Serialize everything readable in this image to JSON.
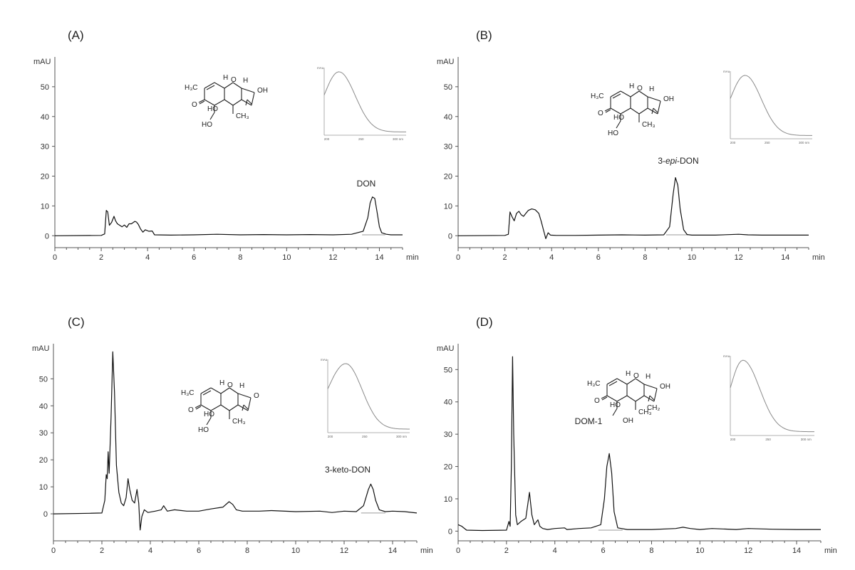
{
  "chart_data": [
    {
      "type": "line",
      "panel": "(A)",
      "xlabel": "min",
      "ylabel": "mAU",
      "xlim": [
        0,
        15
      ],
      "ylim": [
        -4,
        60
      ],
      "x_ticks": [
        0,
        2,
        4,
        6,
        8,
        10,
        12,
        14
      ],
      "y_ticks": [
        0,
        10,
        20,
        30,
        40,
        50
      ],
      "line_color": "#111111",
      "baseline_color": "#9a9a9a",
      "peaks": [
        {
          "label": "DON",
          "rt": 13.7,
          "height": 13
        }
      ],
      "series": [
        {
          "x": [
            0,
            2.0,
            2.15,
            2.22,
            2.28,
            2.35,
            2.45,
            2.55,
            2.62,
            2.7,
            2.9,
            3.0,
            3.1,
            3.2,
            3.3,
            3.45,
            3.52,
            3.6,
            3.7,
            3.8,
            3.9,
            4.05,
            4.2,
            4.3,
            5,
            6,
            7,
            8,
            9,
            10,
            11,
            12,
            12.8,
            13.3,
            13.5,
            13.6,
            13.7,
            13.8,
            13.9,
            14.0,
            14.1,
            14.3,
            14.5,
            15
          ],
          "y": [
            0,
            0.1,
            0.6,
            8.5,
            8.0,
            3.5,
            4.5,
            6.5,
            5.0,
            4.0,
            3.0,
            3.6,
            2.8,
            4.0,
            4.0,
            4.8,
            4.6,
            3.8,
            2.2,
            1.2,
            2.0,
            1.5,
            1.6,
            0.3,
            0.2,
            0.3,
            0.5,
            0.3,
            0.4,
            0.3,
            0.4,
            0.3,
            0.5,
            1.5,
            6.0,
            11.0,
            13.0,
            12.5,
            8.0,
            3.0,
            1.0,
            0.5,
            0.3,
            0.3
          ]
        }
      ],
      "inset": {
        "xlim": [
          200,
          300
        ],
        "x_ticks": [
          "200",
          "250",
          "300 nm"
        ],
        "ylabel": "mAu",
        "uv_max_nm": 218
      }
    },
    {
      "type": "line",
      "panel": "(B)",
      "xlabel": "min",
      "ylabel": "mAU",
      "xlim": [
        0,
        15
      ],
      "ylim": [
        -4,
        60
      ],
      "x_ticks": [
        0,
        2,
        4,
        6,
        8,
        10,
        12,
        14
      ],
      "y_ticks": [
        0,
        10,
        20,
        30,
        40,
        50
      ],
      "line_color": "#111111",
      "baseline_color": "#9a9a9a",
      "peaks": [
        {
          "label_parts": [
            "3-",
            "epi",
            "-DON"
          ],
          "rt": 9.35,
          "height": 19.5
        }
      ],
      "series": [
        {
          "x": [
            0,
            2.0,
            2.15,
            2.22,
            2.3,
            2.4,
            2.5,
            2.6,
            2.7,
            2.8,
            2.9,
            3.0,
            3.15,
            3.3,
            3.45,
            3.55,
            3.65,
            3.75,
            3.85,
            3.95,
            4.2,
            5,
            6,
            7,
            8,
            8.8,
            9.05,
            9.2,
            9.3,
            9.4,
            9.5,
            9.65,
            9.8,
            10,
            11,
            12,
            12.4,
            13,
            14,
            15
          ],
          "y": [
            0,
            0.1,
            0.5,
            8.0,
            6.5,
            5.0,
            7.5,
            8.2,
            7.0,
            6.5,
            7.5,
            8.5,
            9.0,
            8.7,
            7.5,
            5.0,
            2.0,
            -1.0,
            1.0,
            0.2,
            0.1,
            0.1,
            0.2,
            0.3,
            0.2,
            0.3,
            3.0,
            14.0,
            19.5,
            17.0,
            9.0,
            2.0,
            0.4,
            0.2,
            0.2,
            0.5,
            0.3,
            0.2,
            0.2,
            0.2
          ]
        }
      ],
      "inset": {
        "xlim": [
          200,
          300
        ],
        "x_ticks": [
          "200",
          "250",
          "300 nm"
        ],
        "ylabel": "mAu",
        "uv_max_nm": 218
      }
    },
    {
      "type": "line",
      "panel": "(C)",
      "xlabel": "min",
      "ylabel": "mAU",
      "xlim": [
        0,
        15
      ],
      "ylim": [
        -10,
        63
      ],
      "x_ticks": [
        0,
        2,
        4,
        6,
        8,
        10,
        12,
        14
      ],
      "y_ticks": [
        0,
        10,
        20,
        30,
        40,
        50
      ],
      "line_color": "#111111",
      "baseline_color": "#9a9a9a",
      "peaks": [
        {
          "label": "3-keto-DON",
          "rt": 13.15,
          "height": 11
        }
      ],
      "series": [
        {
          "x": [
            0,
            1.5,
            2.0,
            2.12,
            2.18,
            2.22,
            2.26,
            2.3,
            2.38,
            2.45,
            2.52,
            2.6,
            2.7,
            2.8,
            2.9,
            3.0,
            3.08,
            3.15,
            3.25,
            3.35,
            3.45,
            3.52,
            3.58,
            3.65,
            3.75,
            3.9,
            4.2,
            4.45,
            4.55,
            4.7,
            5.0,
            5.5,
            6.0,
            6.5,
            7.0,
            7.25,
            7.4,
            7.55,
            7.8,
            8.5,
            9.0,
            10,
            11,
            11.5,
            12,
            12.5,
            12.8,
            13.0,
            13.1,
            13.2,
            13.3,
            13.45,
            13.7,
            14,
            14.5,
            15
          ],
          "y": [
            0,
            0.2,
            0.3,
            5.0,
            14.5,
            13.0,
            23.0,
            15.0,
            36.0,
            60.0,
            45.0,
            18.0,
            8.0,
            4.0,
            3.0,
            6.0,
            13.0,
            9.0,
            5.0,
            4.0,
            9.0,
            4.0,
            -6.0,
            -1.0,
            1.5,
            0.5,
            1.0,
            1.5,
            3.0,
            1.0,
            1.5,
            1.0,
            1.0,
            1.8,
            2.5,
            4.5,
            3.5,
            1.5,
            1.0,
            1.0,
            1.2,
            0.8,
            1.0,
            0.5,
            1.0,
            0.8,
            3.0,
            9.0,
            11.0,
            9.0,
            5.0,
            1.5,
            0.8,
            1.0,
            0.8,
            0.3
          ]
        }
      ],
      "inset": {
        "xlim": [
          200,
          300
        ],
        "x_ticks": [
          "200",
          "250",
          "300 nm"
        ],
        "ylabel": "mAu",
        "uv_max_nm": 222
      }
    },
    {
      "type": "line",
      "panel": "(D)",
      "xlabel": "min",
      "ylabel": "mAU",
      "xlim": [
        0,
        15
      ],
      "ylim": [
        -3,
        58
      ],
      "x_ticks": [
        0,
        2,
        4,
        6,
        8,
        10,
        12,
        14
      ],
      "y_ticks": [
        0,
        10,
        20,
        30,
        40,
        50
      ],
      "line_color": "#111111",
      "baseline_color": "#9a9a9a",
      "peaks": [
        {
          "label": "DOM-1",
          "rt": 6.25,
          "height": 24
        }
      ],
      "series": [
        {
          "x": [
            0,
            0.15,
            0.35,
            1.0,
            2.0,
            2.1,
            2.15,
            2.2,
            2.25,
            2.3,
            2.38,
            2.45,
            2.6,
            2.8,
            2.95,
            3.05,
            3.15,
            3.3,
            3.38,
            3.5,
            3.7,
            4.0,
            4.4,
            4.5,
            5.0,
            5.5,
            5.9,
            6.05,
            6.15,
            6.25,
            6.35,
            6.45,
            6.6,
            7.0,
            8.0,
            9.0,
            9.3,
            9.6,
            10.0,
            10.5,
            11.5,
            12.0,
            13.0,
            14.0,
            15.0
          ],
          "y": [
            2.0,
            1.5,
            0.3,
            0.2,
            0.3,
            3.0,
            1.5,
            20.0,
            54.0,
            30.0,
            5.0,
            2.0,
            3.0,
            4.0,
            12.0,
            5.0,
            2.0,
            3.5,
            1.5,
            0.8,
            0.5,
            0.8,
            1.0,
            0.5,
            0.8,
            1.0,
            2.0,
            10.0,
            20.0,
            24.0,
            18.0,
            6.0,
            1.0,
            0.5,
            0.5,
            0.8,
            1.2,
            0.8,
            0.5,
            0.8,
            0.5,
            0.8,
            0.6,
            0.5,
            0.5
          ]
        }
      ],
      "inset": {
        "xlim": [
          200,
          300
        ],
        "x_ticks": [
          "200",
          "250",
          "300 nm"
        ],
        "ylabel": "mAu",
        "uv_max_nm": 215
      }
    }
  ],
  "structures": {
    "A": {
      "labels": {
        "ch3_top": "H₃C",
        "h_fusion": "H",
        "o_ring": "O",
        "h_right": "H",
        "oh_right": "OH",
        "o_keto": "O",
        "ho": "HO",
        "ch3": "CH₃",
        "ho_bottom": "HO"
      }
    },
    "B": {
      "labels": {
        "ch3_top": "H₃C",
        "h_fusion": "H",
        "o_ring": "O",
        "h_right": "H",
        "oh_right": "OH",
        "o_keto": "O",
        "ho": "HO",
        "ch3": "CH₃",
        "ho_bottom": "HO"
      }
    },
    "C": {
      "labels": {
        "ch3_top": "H₃C",
        "h_fusion": "H",
        "o_ring": "O",
        "h_right": "H",
        "o_right": "O",
        "o_keto": "O",
        "ho": "HO",
        "ch3": "CH₃",
        "ho_bottom": "HO"
      }
    },
    "D": {
      "labels": {
        "ch3_top": "H₃C",
        "h_fusion": "H",
        "o_ring": "O",
        "h_right": "H",
        "oh_right": "OH",
        "ch2": "CH₂",
        "o_keto": "O",
        "ho": "HO",
        "ch3": "CH₃",
        "oh_bottom": "OH"
      }
    }
  }
}
